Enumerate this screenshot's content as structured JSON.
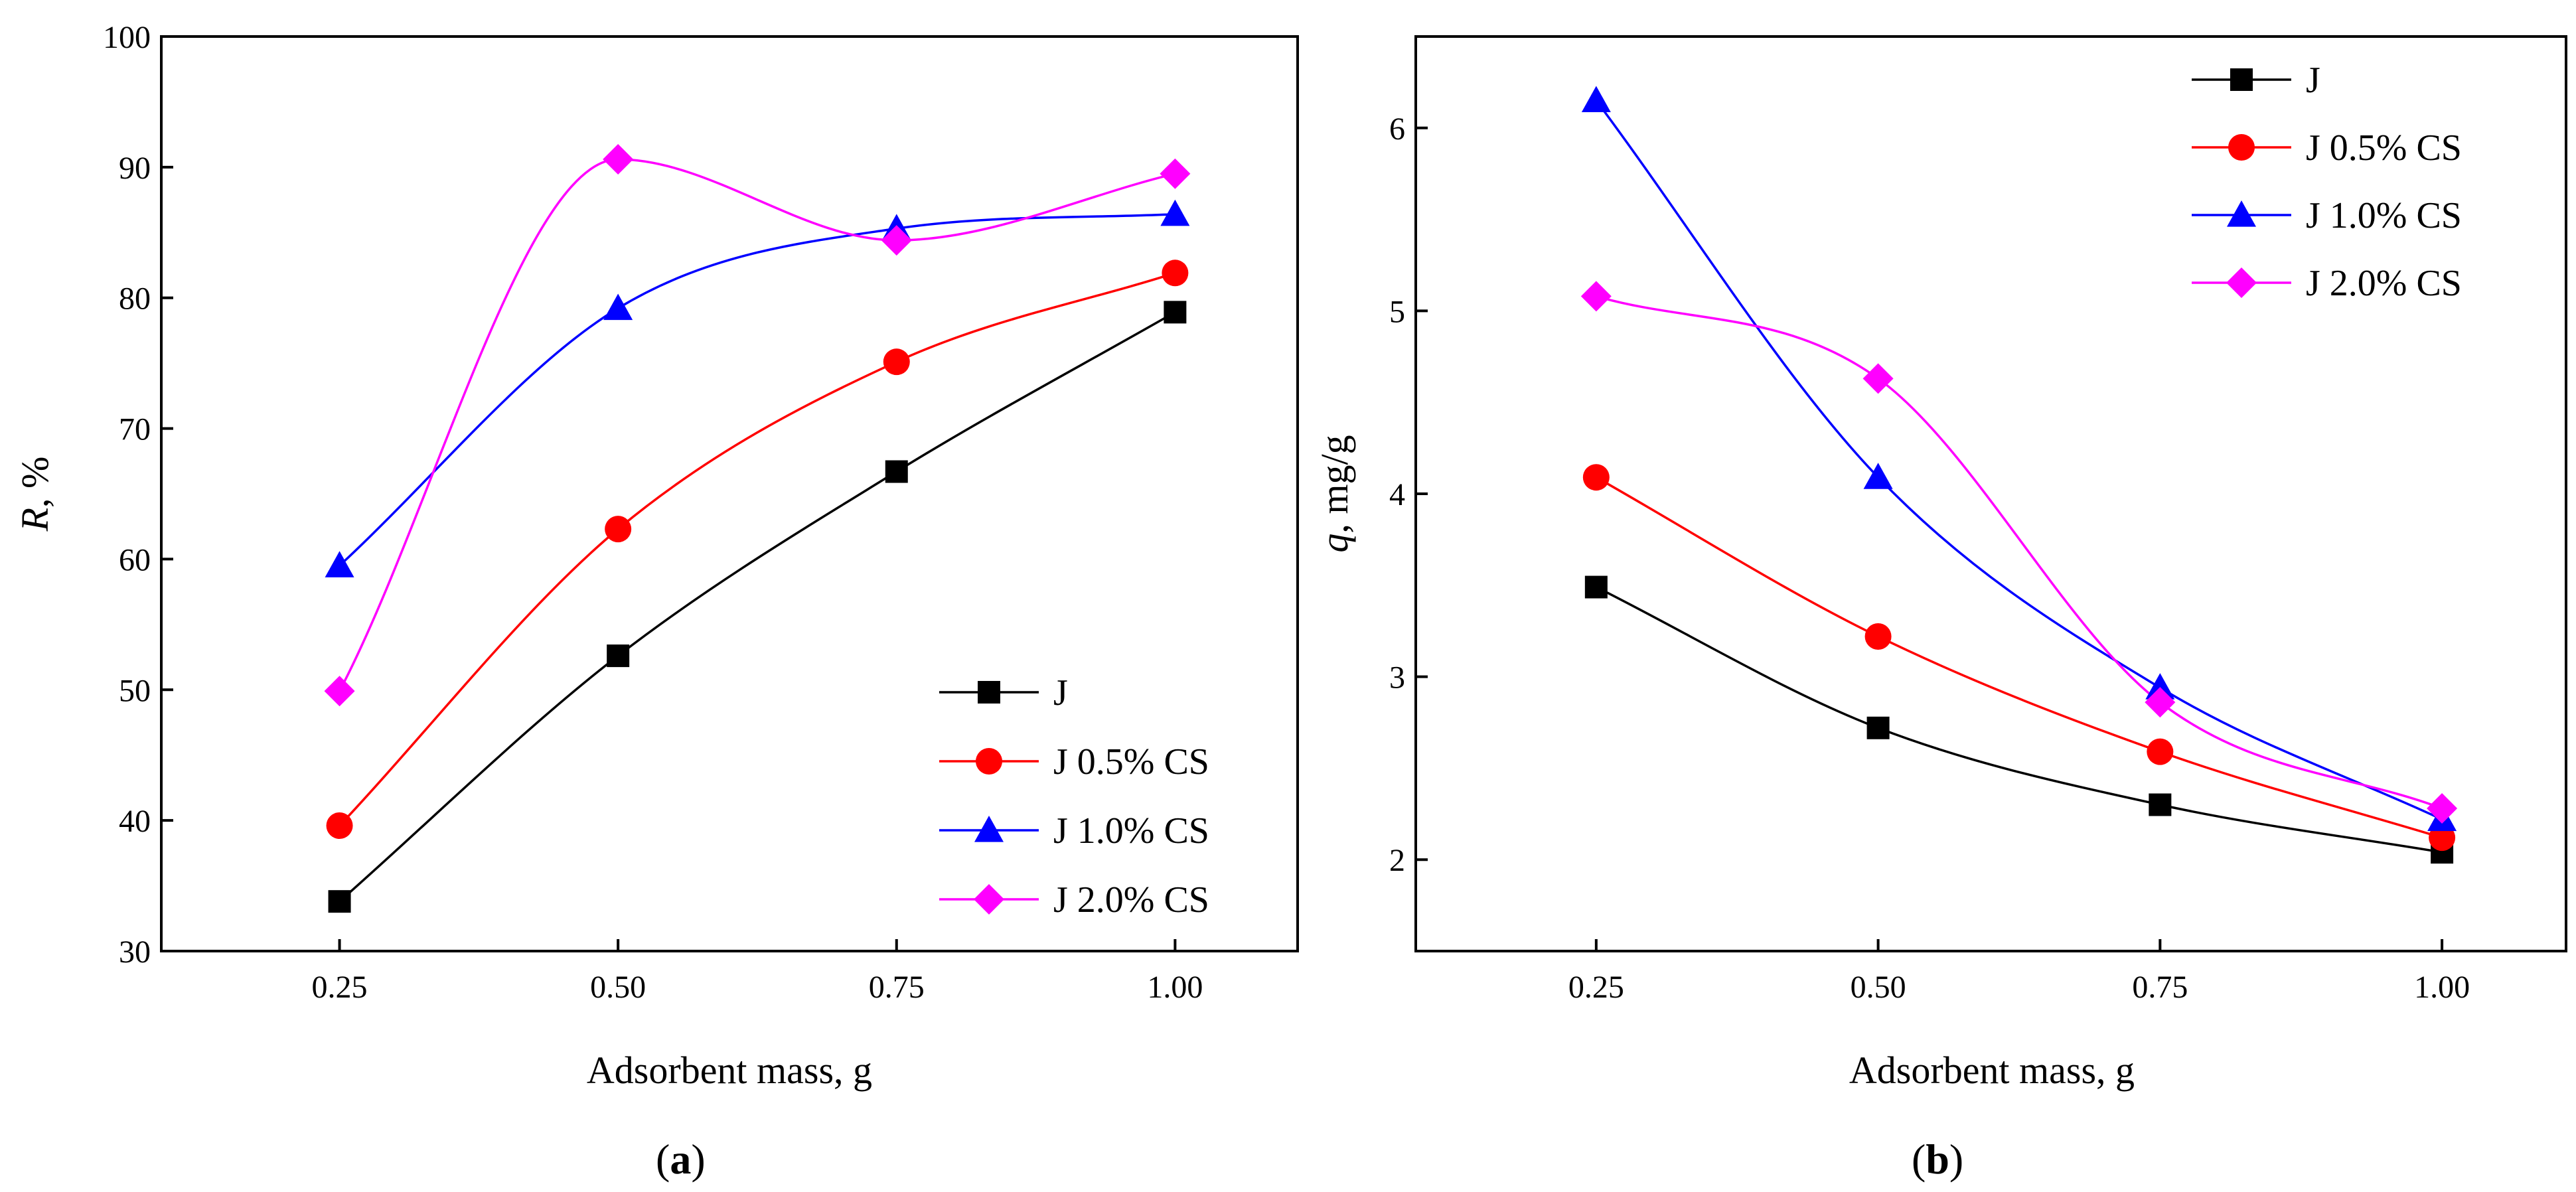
{
  "chart_data": [
    {
      "type": "line",
      "panel_label": "a",
      "title": "",
      "xlabel": "Adsorbent mass, g",
      "ylabel_italic": "R",
      "ylabel_rest": ", %",
      "x": [
        0.25,
        0.5,
        0.75,
        1.0
      ],
      "x_tick_labels": [
        "0.25",
        "0.50",
        "0.75",
        "1.00"
      ],
      "xlim": [
        0.09,
        1.11
      ],
      "ylim": [
        30,
        100
      ],
      "y_ticks": [
        30,
        40,
        50,
        60,
        70,
        80,
        90,
        100
      ],
      "legend_position": "bottom-right",
      "grid": false,
      "series": [
        {
          "name": "J",
          "color": "#000000",
          "marker": "square",
          "values": [
            33.8,
            52.6,
            66.7,
            78.9
          ]
        },
        {
          "name": "J 0.5% CS",
          "color": "#ff0000",
          "marker": "circle",
          "values": [
            39.6,
            62.3,
            75.1,
            81.9
          ]
        },
        {
          "name": "J 1.0% CS",
          "color": "#0000ff",
          "marker": "triangle",
          "values": [
            59.5,
            79.2,
            85.3,
            86.4
          ]
        },
        {
          "name": "J 2.0% CS",
          "color": "#ff00ff",
          "marker": "diamond",
          "values": [
            49.9,
            90.6,
            84.4,
            89.5
          ]
        }
      ]
    },
    {
      "type": "line",
      "panel_label": "b",
      "title": "",
      "xlabel": "Adsorbent mass, g",
      "ylabel_italic": "q",
      "ylabel_rest": ", mg/g",
      "x": [
        0.25,
        0.5,
        0.75,
        1.0
      ],
      "x_tick_labels": [
        "0.25",
        "0.50",
        "0.75",
        "1.00"
      ],
      "xlim": [
        0.09,
        1.11
      ],
      "ylim": [
        1.5,
        6.5
      ],
      "y_ticks": [
        2,
        3,
        4,
        5,
        6
      ],
      "legend_position": "top-right",
      "grid": false,
      "series": [
        {
          "name": "J",
          "color": "#000000",
          "marker": "square",
          "values": [
            3.49,
            2.72,
            2.3,
            2.04
          ]
        },
        {
          "name": "J 0.5% CS",
          "color": "#ff0000",
          "marker": "circle",
          "values": [
            4.09,
            3.22,
            2.59,
            2.12
          ]
        },
        {
          "name": "J 1.0% CS",
          "color": "#0000ff",
          "marker": "triangle",
          "values": [
            6.15,
            4.09,
            2.94,
            2.22
          ]
        },
        {
          "name": "J 2.0% CS",
          "color": "#ff00ff",
          "marker": "diamond",
          "values": [
            5.08,
            4.63,
            2.86,
            2.28
          ]
        }
      ]
    }
  ]
}
